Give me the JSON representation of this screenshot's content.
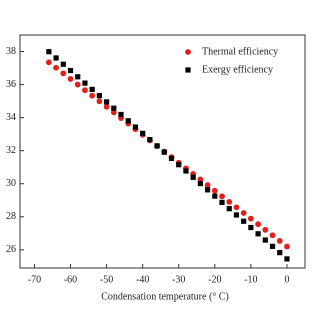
{
  "chart_data": {
    "type": "scatter",
    "x_label": "Condensation temperature (° C)",
    "x": [
      -66,
      -64,
      -62,
      -60,
      -58,
      -56,
      -54,
      -52,
      -50,
      -48,
      -46,
      -44,
      -42,
      -40,
      -38,
      -36,
      -34,
      -32,
      -30,
      -28,
      -26,
      -24,
      -22,
      -20,
      -18,
      -16,
      -14,
      -12,
      -10,
      -8,
      -6,
      -4,
      -2,
      0
    ],
    "series": [
      {
        "name": "Thermal efficiency",
        "color": "#e0201b",
        "marker": "circle",
        "values": [
          37.35,
          37.02,
          36.68,
          36.34,
          36.0,
          35.66,
          35.33,
          34.99,
          34.65,
          34.31,
          33.97,
          33.64,
          33.3,
          32.96,
          32.62,
          32.28,
          31.95,
          31.61,
          31.27,
          30.93,
          30.59,
          30.26,
          29.92,
          29.58,
          29.24,
          28.9,
          28.57,
          28.23,
          27.89,
          27.55,
          27.21,
          26.88,
          26.54,
          26.2
        ]
      },
      {
        "name": "Exergy efficiency",
        "color": "#000000",
        "marker": "square",
        "values": [
          37.99,
          37.61,
          37.23,
          36.85,
          36.47,
          36.09,
          35.71,
          35.33,
          34.95,
          34.57,
          34.19,
          33.81,
          33.43,
          33.05,
          32.67,
          32.29,
          31.91,
          31.53,
          31.15,
          30.77,
          30.39,
          30.01,
          29.63,
          29.25,
          28.87,
          28.49,
          28.11,
          27.73,
          27.35,
          26.97,
          26.59,
          26.21,
          25.83,
          25.45
        ]
      }
    ],
    "xlim": [
      -74,
      5
    ],
    "xticks": [
      -70,
      -60,
      -50,
      -40,
      -30,
      -20,
      -10,
      0
    ],
    "ylim": [
      24.9,
      39
    ],
    "yticks": [
      26,
      28,
      30,
      32,
      34,
      36,
      38
    ],
    "legend": "upper right"
  }
}
